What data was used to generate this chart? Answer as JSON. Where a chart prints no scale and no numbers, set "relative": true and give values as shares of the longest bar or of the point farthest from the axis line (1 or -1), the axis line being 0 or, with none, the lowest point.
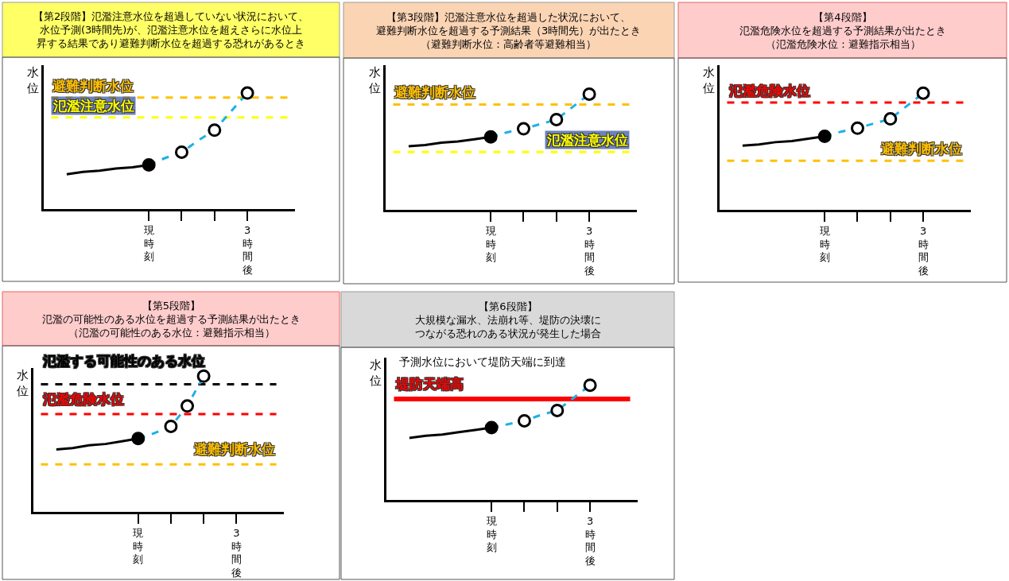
{
  "chart_data": [
    {
      "type": "line",
      "relative": true,
      "title": "【第2段階】氾濫注意水位を超過していない状況において、水位予測(3時間先)が、氾濫注意水位を超えさらに水位上昇する結果であり避難判断水位を超過する恐れがあるとき",
      "ylabel": "水位",
      "categories": [
        null,
        null,
        null,
        null,
        null,
        "現時刻",
        null,
        null,
        null,
        null,
        null,
        "3時間後"
      ],
      "tick_labels": "x",
      "grid": false,
      "series": [
        {
          "color": "#000000",
          "values": [
            0.3,
            0.32,
            0.33,
            0.35,
            0.36,
            0.38,
            null,
            null,
            null,
            null,
            null,
            null
          ],
          "marker": "none",
          "line_style": "solid"
        },
        {
          "color": "#1fb0e8",
          "values": [
            null,
            null,
            null,
            null,
            null,
            0.38,
            0.44,
            0.49,
            0.59,
            0.68,
            0.84,
            1
          ],
          "marker": "none",
          "line_style": "dashed"
        },
        {
          "type": "scatter",
          "color": "#000000",
          "values": [
            null,
            null,
            null,
            null,
            null,
            0.38,
            null,
            null,
            null,
            null,
            null,
            null
          ],
          "marker": "circle"
        },
        {
          "type": "scatter",
          "color": "#ffffff",
          "values": [
            null,
            null,
            null,
            null,
            null,
            null,
            null,
            0.49,
            null,
            0.68,
            null,
            1
          ],
          "marker": "circle"
        }
      ],
      "ref_lines": [
        {
          "axis": "y",
          "value": 0.96,
          "label": "避難判断水位",
          "color": "#ffc000",
          "line_style": "dashed"
        },
        {
          "axis": "y",
          "value": 0.79,
          "label": "氾濫注意水位",
          "color": "#ffff00",
          "line_style": "dashed"
        }
      ]
    },
    {
      "type": "line",
      "relative": true,
      "title": "【第3段階】氾濫注意水位を超過した状況において、避難判断水位を超過する予測結果（3時間先）が出たとき（避難判断水位：高齢者等避難相当）",
      "ylabel": "水位",
      "categories": [
        null,
        null,
        null,
        null,
        null,
        "現時刻",
        null,
        null,
        null,
        null,
        null,
        "3時間後"
      ],
      "tick_labels": "x",
      "grid": false,
      "series": [
        {
          "color": "#000000",
          "values": [
            0.55,
            0.56,
            0.58,
            0.59,
            0.61,
            0.63,
            null,
            null,
            null,
            null,
            null,
            null
          ],
          "marker": "none",
          "line_style": "solid"
        },
        {
          "color": "#1fb0e8",
          "values": [
            null,
            null,
            null,
            null,
            null,
            0.63,
            0.67,
            0.7,
            0.74,
            0.78,
            0.89,
            1
          ],
          "marker": "none",
          "line_style": "dashed"
        },
        {
          "type": "scatter",
          "color": "#000000",
          "values": [
            null,
            null,
            null,
            null,
            null,
            0.63,
            null,
            null,
            null,
            null,
            null,
            null
          ],
          "marker": "circle"
        },
        {
          "type": "scatter",
          "color": "#ffffff",
          "values": [
            null,
            null,
            null,
            null,
            null,
            null,
            null,
            0.7,
            null,
            0.78,
            null,
            1
          ],
          "marker": "circle"
        }
      ],
      "ref_lines": [
        {
          "axis": "y",
          "value": 0.91,
          "label": "避難判断水位",
          "color": "#ffc000",
          "line_style": "dashed"
        },
        {
          "axis": "y",
          "value": 0.5,
          "label": "氾濫注意水位",
          "color": "#ffff00",
          "line_style": "dashed"
        }
      ]
    },
    {
      "type": "line",
      "relative": true,
      "title": "【第4段階】氾濫危険水位を超過する予測結果が出たとき（氾濫危険水位：避難指示相当）",
      "ylabel": "水位",
      "categories": [
        null,
        null,
        null,
        null,
        null,
        "現時刻",
        null,
        null,
        null,
        null,
        null,
        "3時間後"
      ],
      "tick_labels": "x",
      "grid": false,
      "series": [
        {
          "color": "#000000",
          "values": [
            0.55,
            0.56,
            0.58,
            0.59,
            0.61,
            0.63,
            null,
            null,
            null,
            null,
            null,
            null
          ],
          "marker": "none",
          "line_style": "solid"
        },
        {
          "color": "#1fb0e8",
          "values": [
            null,
            null,
            null,
            null,
            null,
            0.63,
            0.67,
            0.7,
            0.74,
            0.78,
            0.89,
            1
          ],
          "marker": "none",
          "line_style": "dashed"
        },
        {
          "type": "scatter",
          "color": "#000000",
          "values": [
            null,
            null,
            null,
            null,
            null,
            0.63,
            null,
            null,
            null,
            null,
            null,
            null
          ],
          "marker": "circle"
        },
        {
          "type": "scatter",
          "color": "#ffffff",
          "values": [
            null,
            null,
            null,
            null,
            null,
            null,
            null,
            0.7,
            null,
            0.78,
            null,
            1
          ],
          "marker": "circle"
        }
      ],
      "ref_lines": [
        {
          "axis": "y",
          "value": 0.92,
          "label": "氾濫危険水位",
          "color": "#ff0000",
          "line_style": "dashed"
        },
        {
          "axis": "y",
          "value": 0.42,
          "label": "避難判断水位",
          "color": "#ffc000",
          "line_style": "dashed"
        }
      ]
    },
    {
      "type": "line",
      "relative": true,
      "title": "【第5段階】氾濫の可能性のある水位を超過する予測結果が出たとき（氾濫の可能性のある水位：避難指示相当）",
      "ylabel": "水位",
      "categories": [
        null,
        null,
        null,
        null,
        null,
        "現時刻",
        null,
        null,
        null,
        null,
        null,
        "3時間後"
      ],
      "tick_labels": "x",
      "grid": false,
      "series": [
        {
          "color": "#000000",
          "values": [
            0.46,
            0.47,
            0.49,
            0.5,
            0.52,
            0.54,
            null,
            null,
            null,
            null,
            null,
            null
          ],
          "marker": "none",
          "line_style": "solid"
        },
        {
          "color": "#1fb0e8",
          "values": [
            null,
            null,
            null,
            null,
            null,
            0.54,
            0.58,
            0.63,
            0.78,
            1,
            null,
            null
          ],
          "marker": "none",
          "line_style": "dashed"
        },
        {
          "type": "scatter",
          "color": "#000000",
          "values": [
            null,
            null,
            null,
            null,
            null,
            0.54,
            null,
            null,
            null,
            null,
            null,
            null
          ],
          "marker": "circle"
        },
        {
          "type": "scatter",
          "color": "#ffffff",
          "values": [
            null,
            null,
            null,
            null,
            null,
            null,
            null,
            0.63,
            0.78,
            1,
            null,
            null
          ],
          "marker": "circle"
        }
      ],
      "ref_lines": [
        {
          "axis": "y",
          "value": 0.94,
          "label": "氾濫する可能性のある水位",
          "color": "#000000",
          "line_style": "dashed"
        },
        {
          "axis": "y",
          "value": 0.72,
          "label": "氾濫危険水位",
          "color": "#ff0000",
          "line_style": "dashed"
        },
        {
          "axis": "y",
          "value": 0.35,
          "label": "避難判断水位",
          "color": "#ffc000",
          "line_style": "dashed"
        }
      ]
    },
    {
      "type": "line",
      "relative": true,
      "title": "【第6段階】大規模な漏水、法崩れ等、堤防の決壊につながる恐れのある状況が発生した場合",
      "ylabel": "水位",
      "categories": [
        null,
        null,
        null,
        null,
        null,
        "現時刻",
        null,
        null,
        null,
        null,
        null,
        "3時間後"
      ],
      "tick_labels": "x",
      "grid": false,
      "annotations": [
        "予測水位において堤防天端に到達"
      ],
      "series": [
        {
          "color": "#000000",
          "values": [
            0.54,
            0.56,
            0.57,
            0.59,
            0.61,
            0.63,
            null,
            null,
            null,
            null,
            null,
            null
          ],
          "marker": "none",
          "line_style": "solid"
        },
        {
          "color": "#1fb0e8",
          "values": [
            null,
            null,
            null,
            null,
            null,
            0.63,
            0.66,
            0.69,
            0.74,
            0.78,
            0.89,
            1
          ],
          "marker": "none",
          "line_style": "dashed"
        },
        {
          "type": "scatter",
          "color": "#000000",
          "values": [
            null,
            null,
            null,
            null,
            null,
            0.63,
            null,
            null,
            null,
            null,
            null,
            null
          ],
          "marker": "circle"
        },
        {
          "type": "scatter",
          "color": "#ffffff",
          "values": [
            null,
            null,
            null,
            null,
            null,
            null,
            null,
            0.69,
            null,
            0.78,
            null,
            1
          ],
          "marker": "circle"
        }
      ],
      "ref_lines": [
        {
          "axis": "y",
          "value": 0.88,
          "label": "堤防天端高",
          "color": "#ff0000",
          "line_style": "solid"
        }
      ]
    }
  ]
}
